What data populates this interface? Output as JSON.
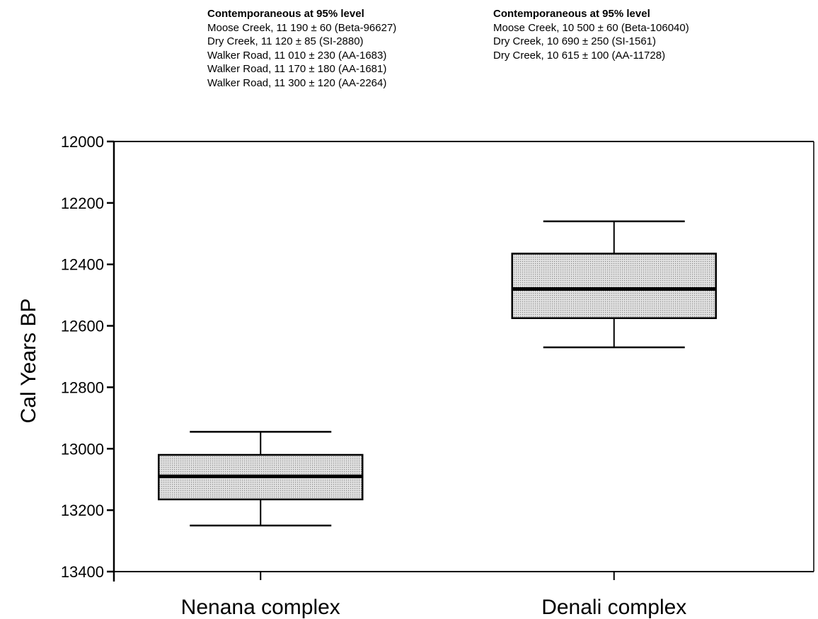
{
  "notes": [
    {
      "heading": "Contemporaneous at 95% level",
      "lines": [
        "Moose Creek, 11 190 ± 60 (Beta-96627)",
        "Dry Creek, 11 120 ± 85 (SI-2880)",
        "Walker Road, 11 010 ± 230 (AA-1683)",
        "Walker Road, 11 170 ± 180 (AA-1681)",
        "Walker Road, 11 300 ± 120 (AA-2264)"
      ]
    },
    {
      "heading": "Contemporaneous at 95% level",
      "lines": [
        "Moose Creek, 10 500 ± 60 (Beta-106040)",
        "Dry Creek, 10 690 ± 250 (SI-1561)",
        "Dry Creek, 10 615 ± 100 (AA-11728)"
      ]
    }
  ],
  "chart_data": {
    "type": "box",
    "title": "",
    "xlabel": "",
    "ylabel": "Cal Years BP",
    "ylim": [
      12000,
      13400
    ],
    "y_inverted": true,
    "yticks": [
      "12000",
      "12200",
      "12400",
      "12600",
      "12800",
      "13000",
      "13200",
      "13400"
    ],
    "grid": false,
    "box_fill": "#c8c8c8",
    "categories": [
      "Nenana complex",
      "Denali complex"
    ],
    "boxes": [
      {
        "category": "Nenana complex",
        "whisker_low": 12945,
        "q1": 13020,
        "median": 13090,
        "q3": 13165,
        "whisker_high": 13250
      },
      {
        "category": "Denali complex",
        "whisker_low": 12260,
        "q1": 12365,
        "median": 12480,
        "q3": 12575,
        "whisker_high": 12670
      }
    ]
  }
}
